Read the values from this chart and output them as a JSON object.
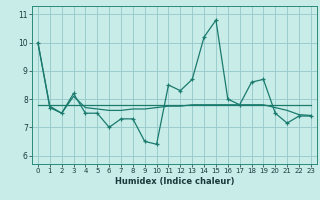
{
  "title": "",
  "xlabel": "Humidex (Indice chaleur)",
  "ylabel": "",
  "background_color": "#c8ede8",
  "grid_color": "#99cccc",
  "line_color": "#1a7a6e",
  "x": [
    0,
    1,
    2,
    3,
    4,
    5,
    6,
    7,
    8,
    9,
    10,
    11,
    12,
    13,
    14,
    15,
    16,
    17,
    18,
    19,
    20,
    21,
    22,
    23
  ],
  "y_main": [
    10.0,
    7.7,
    7.5,
    8.2,
    7.5,
    7.5,
    7.0,
    7.3,
    7.3,
    6.5,
    6.4,
    8.5,
    8.3,
    8.7,
    10.2,
    10.8,
    8.0,
    7.8,
    8.6,
    8.7,
    7.5,
    7.15,
    7.4,
    7.4
  ],
  "y_avg": [
    10.0,
    7.75,
    7.5,
    8.1,
    7.7,
    7.65,
    7.6,
    7.6,
    7.65,
    7.65,
    7.7,
    7.75,
    7.75,
    7.8,
    7.8,
    7.8,
    7.8,
    7.8,
    7.8,
    7.8,
    7.7,
    7.6,
    7.45,
    7.42
  ],
  "y_flat": [
    7.8,
    7.8,
    7.8,
    7.8,
    7.8,
    7.8,
    7.8,
    7.8,
    7.8,
    7.8,
    7.8,
    7.8,
    7.8,
    7.8,
    7.8,
    7.8,
    7.8,
    7.8,
    7.8,
    7.8,
    7.8,
    7.8,
    7.8,
    7.8
  ],
  "ylim": [
    5.7,
    11.3
  ],
  "yticks": [
    6,
    7,
    8,
    9,
    10,
    11
  ],
  "xticks": [
    0,
    1,
    2,
    3,
    4,
    5,
    6,
    7,
    8,
    9,
    10,
    11,
    12,
    13,
    14,
    15,
    16,
    17,
    18,
    19,
    20,
    21,
    22,
    23
  ]
}
